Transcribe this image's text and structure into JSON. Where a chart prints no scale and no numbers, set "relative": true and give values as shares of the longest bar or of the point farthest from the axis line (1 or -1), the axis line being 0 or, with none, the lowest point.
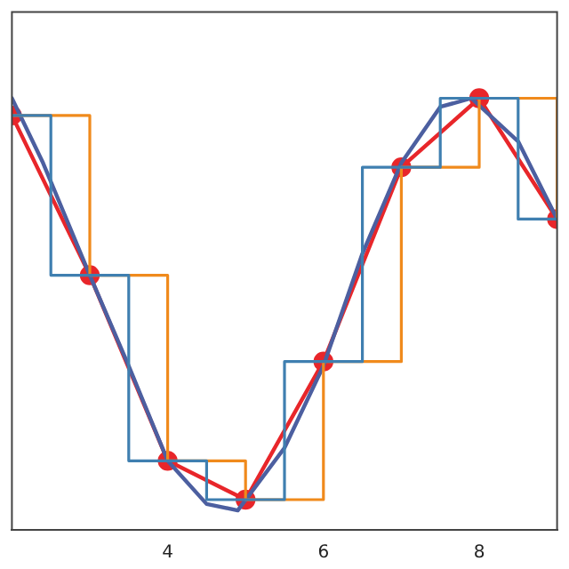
{
  "chart_data": {
    "type": "line",
    "relative": true,
    "xlim": [
      2,
      9
    ],
    "xticks": [
      4,
      6,
      8
    ],
    "grid": false,
    "legend": false,
    "x": [
      2,
      3,
      4,
      5,
      6,
      7,
      8,
      9
    ],
    "series": [
      {
        "type": "step",
        "color": "#3f7fb0",
        "x": [
          2,
          2.5,
          3.5,
          4.5,
          5.5,
          6.5,
          7.5,
          8.5,
          9
        ],
        "values": [
          0.96,
          0.59,
          0.16,
          0.07,
          0.39,
          0.84,
          1.0,
          0.72,
          0.72
        ]
      },
      {
        "type": "step",
        "color": "#f08a1c",
        "values": [
          0.96,
          0.59,
          0.16,
          0.07,
          0.39,
          0.84,
          1.0,
          0.72
        ]
      },
      {
        "color": "#4c5fa0",
        "marker": "none",
        "x": [
          2,
          2.4,
          3,
          3.5,
          4,
          4.5,
          4.9,
          5.5,
          6,
          6.5,
          7,
          7.5,
          7.9,
          8.5,
          9
        ],
        "values": [
          1.0,
          0.85,
          0.59,
          0.38,
          0.16,
          0.06,
          0.045,
          0.19,
          0.38,
          0.64,
          0.85,
          0.98,
          1.0,
          0.9,
          0.72
        ]
      },
      {
        "color": "#e8262a",
        "marker": "circle",
        "values": [
          0.96,
          0.59,
          0.16,
          0.07,
          0.39,
          0.84,
          1.0,
          0.72
        ]
      }
    ]
  }
}
